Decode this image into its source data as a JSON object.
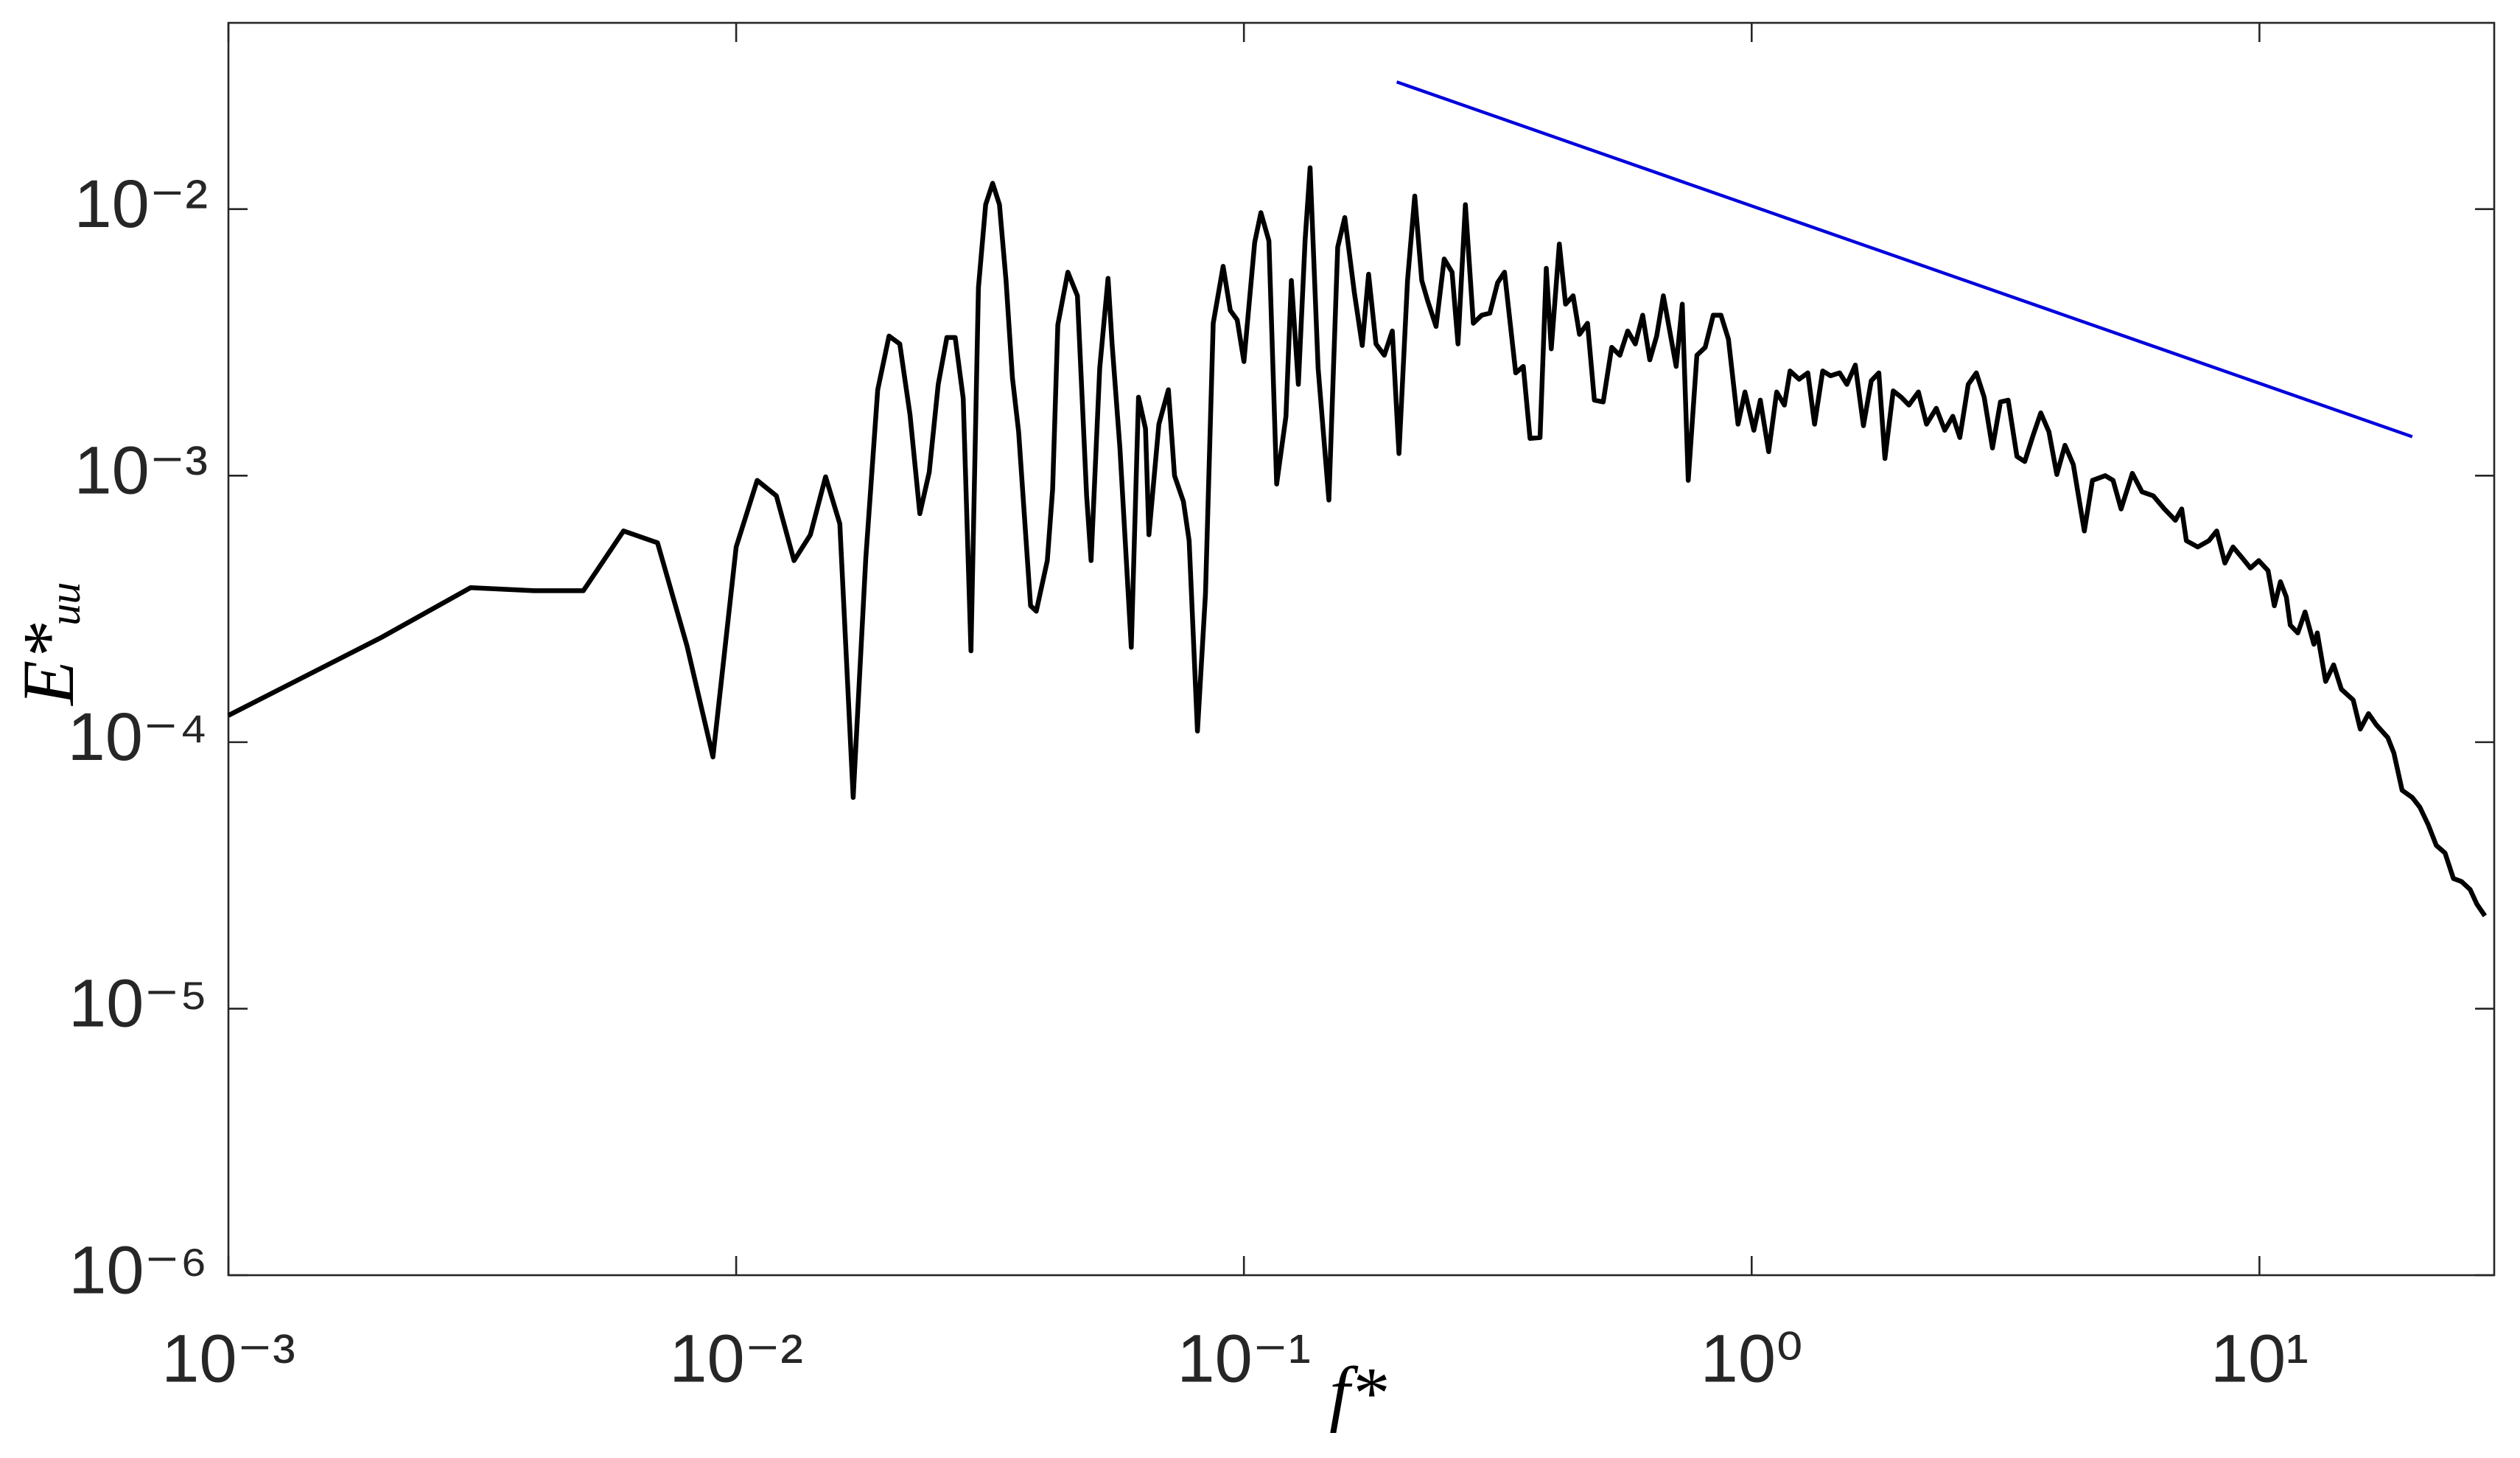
{
  "chart_data": {
    "type": "line",
    "xlabel": "f*",
    "ylabel": "E*ᵤᵤ",
    "xscale": "log",
    "yscale": "log",
    "xlim": [
      0.001,
      29
    ],
    "ylim": [
      1e-06,
      0.05
    ],
    "xticks": [
      {
        "value": 0.001,
        "label": "10⁻³"
      },
      {
        "value": 0.01,
        "label": "10⁻²"
      },
      {
        "value": 0.1,
        "label": "10⁻¹"
      },
      {
        "value": 1,
        "label": "10⁰"
      },
      {
        "value": 10,
        "label": "10¹"
      }
    ],
    "yticks": [
      {
        "value": 1e-06,
        "label": "10⁻⁶"
      },
      {
        "value": 1e-05,
        "label": "10⁻⁵"
      },
      {
        "value": 0.0001,
        "label": "10⁻⁴"
      },
      {
        "value": 0.001,
        "label": "10⁻³"
      },
      {
        "value": 0.01,
        "label": "10⁻²"
      }
    ],
    "grid": false,
    "series": [
      {
        "color": "#000000",
        "x": [
          0.001,
          0.002,
          0.003,
          0.004,
          0.005,
          0.006,
          0.007,
          0.008,
          0.009,
          0.01,
          0.011,
          0.012,
          0.013,
          0.014,
          0.015,
          0.016,
          0.017,
          0.018,
          0.019,
          0.02,
          0.021,
          0.022,
          0.023,
          0.024,
          0.025,
          0.026,
          0.027,
          0.028,
          0.029,
          0.03,
          0.031,
          0.032,
          0.033,
          0.034,
          0.035,
          0.036,
          0.038,
          0.039,
          0.041,
          0.042,
          0.043,
          0.045,
          0.047,
          0.049,
          0.05,
          0.052,
          0.054,
          0.055,
          0.057,
          0.06,
          0.062,
          0.064,
          0.065,
          0.068,
          0.071,
          0.073,
          0.076,
          0.078,
          0.081,
          0.084,
          0.087,
          0.091,
          0.094,
          0.097,
          0.1,
          0.105,
          0.108,
          0.112,
          0.116,
          0.121,
          0.124,
          0.128,
          0.132,
          0.135,
          0.14,
          0.147,
          0.153,
          0.158,
          0.165,
          0.171,
          0.176,
          0.182,
          0.189,
          0.196,
          0.202,
          0.21,
          0.217,
          0.224,
          0.23,
          0.239,
          0.248,
          0.257,
          0.264,
          0.273,
          0.283,
          0.294,
          0.305,
          0.316,
          0.326,
          0.343,
          0.355,
          0.366,
          0.383,
          0.394,
          0.403,
          0.418,
          0.43,
          0.445,
          0.458,
          0.475,
          0.49,
          0.51,
          0.53,
          0.55,
          0.57,
          0.59,
          0.61,
          0.63,
          0.65,
          0.67,
          0.71,
          0.73,
          0.75,
          0.78,
          0.81,
          0.84,
          0.87,
          0.9,
          0.94,
          0.97,
          1.01,
          1.04,
          1.08,
          1.12,
          1.16,
          1.19,
          1.24,
          1.29,
          1.33,
          1.38,
          1.43,
          1.49,
          1.54,
          1.6,
          1.66,
          1.72,
          1.78,
          1.83,
          1.9,
          1.97,
          2.04,
          2.13,
          2.21,
          2.31,
          2.4,
          2.49,
          2.57,
          2.67,
          2.77,
          2.87,
          2.98,
          3.09,
          3.2,
          3.33,
          3.45,
          3.58,
          3.71,
          3.85,
          3.99,
          4.14,
          4.3,
          4.52,
          4.69,
          4.97,
          5.15,
          5.34,
          5.62,
          5.87,
          6.18,
          6.5,
          6.83,
          7.03,
          7.18,
          7.56,
          7.95,
          8.24,
          8.55,
          8.87,
          9.26,
          9.6,
          9.97,
          10.4,
          10.7,
          11.0,
          11.3,
          11.5,
          11.9,
          12.3,
          12.8,
          13.0,
          13.5,
          14.0,
          14.5,
          15.3,
          15.8,
          16.4,
          17.0,
          17.9,
          18.4,
          19.1,
          20.0,
          20.7,
          21.5,
          22.3,
          23.2,
          24.1,
          25.0,
          26.0,
          26.8,
          27.8
        ],
        "values": [
          0.000126,
          0.000247,
          0.00038,
          0.00037,
          0.00037,
          0.00062,
          0.00056,
          0.00023,
          8.8e-05,
          0.00054,
          0.00096,
          0.00084,
          0.00048,
          0.0006,
          0.00099,
          0.00066,
          6.2e-05,
          0.00049,
          0.0021,
          0.00334,
          0.00312,
          0.00169,
          0.00072,
          0.00103,
          0.0022,
          0.0033,
          0.0033,
          0.00195,
          0.00022,
          0.00507,
          0.0104,
          0.0125,
          0.0104,
          0.0054,
          0.00233,
          0.00146,
          0.000325,
          0.00031,
          0.00048,
          0.00089,
          0.00368,
          0.0058,
          0.00473,
          0.00084,
          0.00048,
          0.00253,
          0.0055,
          0.00312,
          0.00126,
          0.000227,
          0.00197,
          0.0015,
          0.0006,
          0.00156,
          0.0021,
          0.001,
          0.0008,
          0.00057,
          0.00011,
          0.00036,
          0.00373,
          0.0061,
          0.00417,
          0.00384,
          0.00268,
          0.0075,
          0.0097,
          0.0076,
          0.00093,
          0.00167,
          0.0054,
          0.0022,
          0.0077,
          0.0143,
          0.00253,
          0.00081,
          0.0072,
          0.0093,
          0.00486,
          0.00308,
          0.0057,
          0.00312,
          0.00283,
          0.00349,
          0.00121,
          0.0054,
          0.0112,
          0.0054,
          0.00454,
          0.00363,
          0.0065,
          0.0058,
          0.00312,
          0.0104,
          0.00373,
          0.004,
          0.00407,
          0.0053,
          0.0058,
          0.00243,
          0.00257,
          0.00138,
          0.00139,
          0.006,
          0.00299,
          0.0074,
          0.0044,
          0.00473,
          0.00339,
          0.00373,
          0.00192,
          0.00189,
          0.00303,
          0.00283,
          0.00349,
          0.00312,
          0.004,
          0.00272,
          0.00334,
          0.00473,
          0.00257,
          0.0044,
          0.00096,
          0.00283,
          0.00303,
          0.004,
          0.004,
          0.00325,
          0.00156,
          0.00206,
          0.00148,
          0.00192,
          0.00123,
          0.00206,
          0.00184,
          0.00247,
          0.0023,
          0.00243,
          0.00156,
          0.00247,
          0.00237,
          0.00243,
          0.0022,
          0.0026,
          0.00154,
          0.00227,
          0.00243,
          0.00116,
          0.00208,
          0.00197,
          0.00184,
          0.00206,
          0.00156,
          0.00179,
          0.00148,
          0.00167,
          0.00139,
          0.0022,
          0.00243,
          0.00197,
          0.00127,
          0.00189,
          0.00192,
          0.00118,
          0.00113,
          0.00141,
          0.00172,
          0.00146,
          0.00101,
          0.0013,
          0.0011,
          0.00062,
          0.00096,
          0.001,
          0.00096,
          0.00075,
          0.00102,
          0.00087,
          0.00084,
          0.00075,
          0.00068,
          0.00075,
          0.00057,
          0.00054,
          0.00057,
          0.00062,
          0.00047,
          0.00054,
          0.00049,
          0.00045,
          0.00048,
          0.00044,
          0.000325,
          0.0004,
          0.00035,
          0.000275,
          0.000257,
          0.000308,
          0.000233,
          0.000257,
          0.000169,
          0.000195,
          0.000158,
          0.000144,
          0.000112,
          0.000128,
          0.000116,
          0.000104,
          9.1e-05,
          6.6e-05,
          6.2e-05,
          5.7e-05,
          4.9e-05,
          4.1e-05,
          3.84e-05,
          3.08e-05,
          3e-05,
          2.8e-05,
          2.47e-05,
          2.23e-05
        ]
      },
      {
        "color": "#0000dd",
        "x": [
          0.2,
          20
        ],
        "values": [
          0.03,
          0.0014
        ]
      }
    ]
  }
}
